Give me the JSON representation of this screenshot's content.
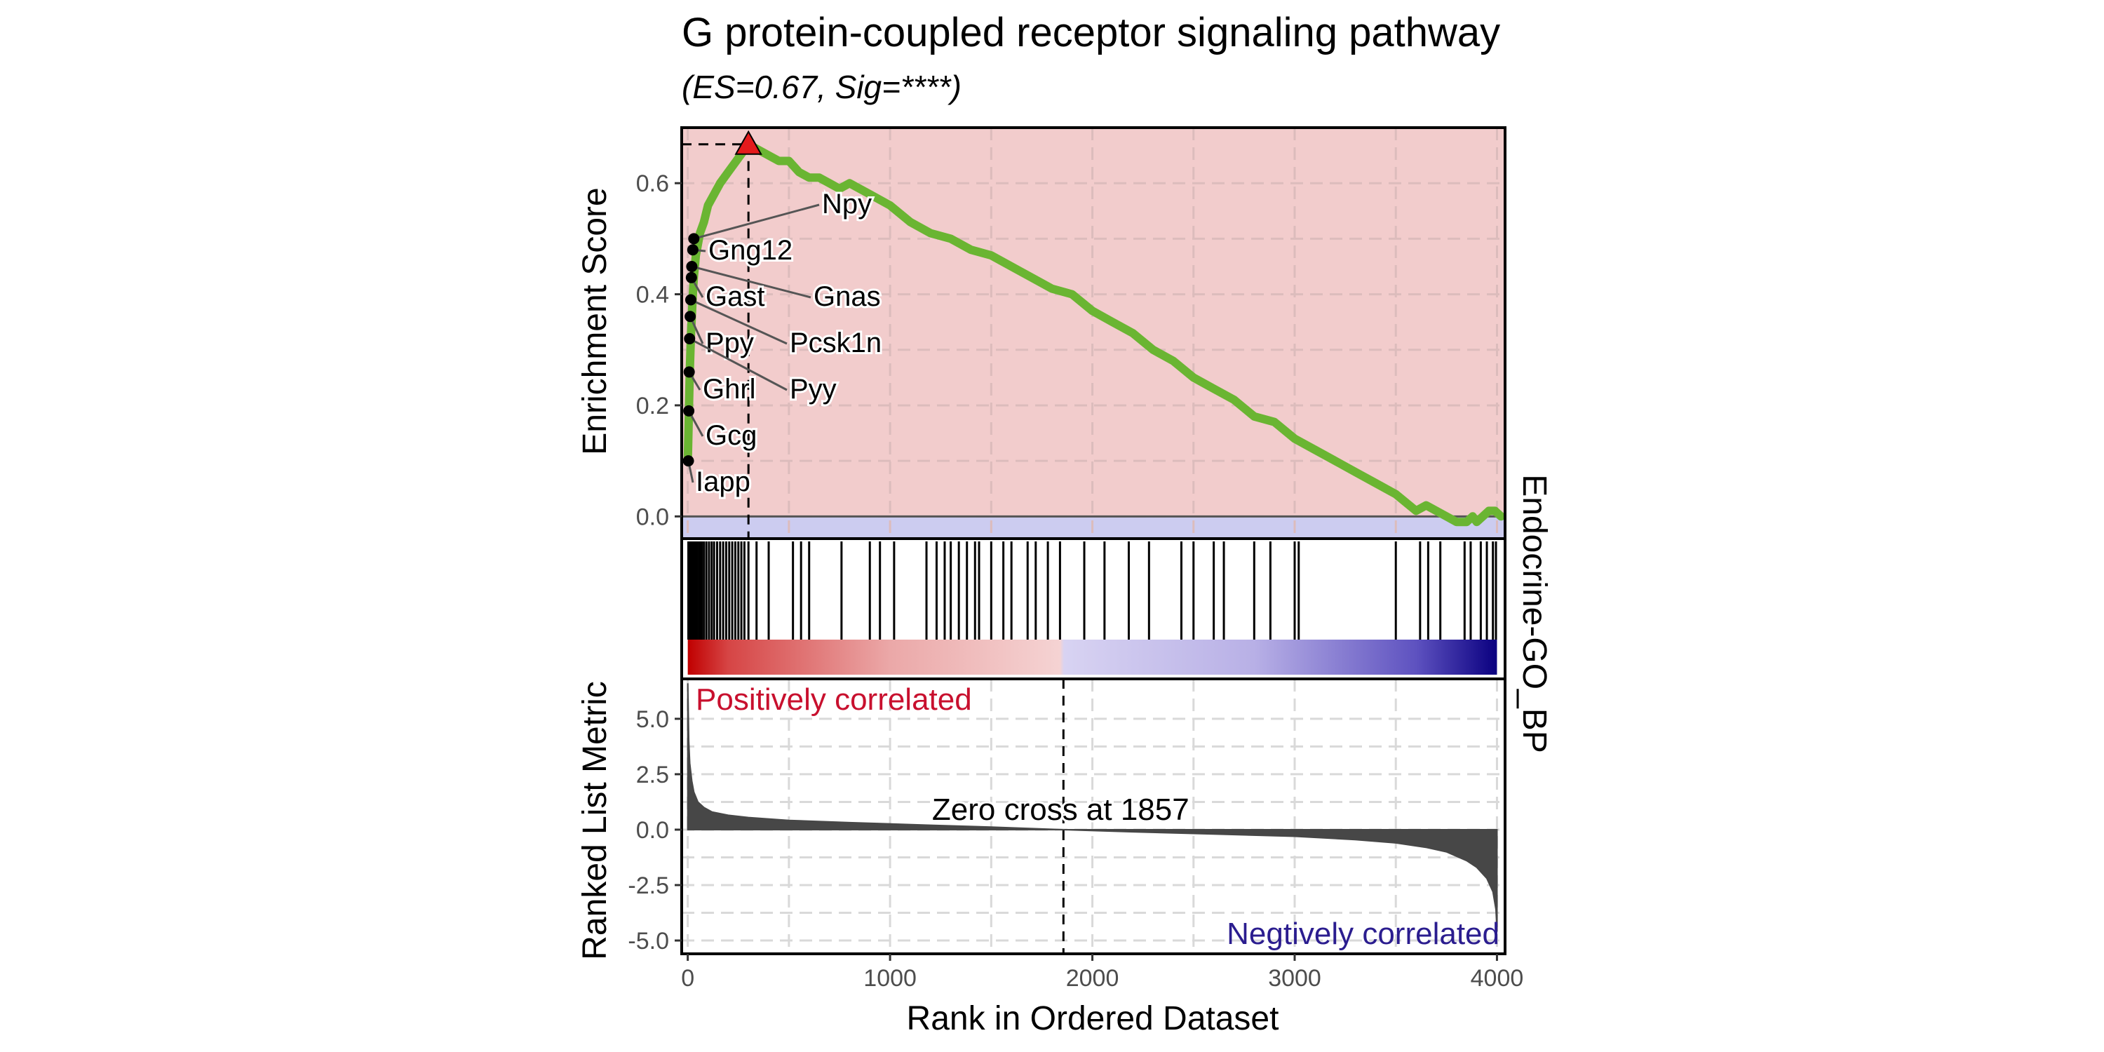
{
  "chart_data": {
    "type": "line",
    "title": "G protein-coupled receptor signaling pathway",
    "subtitle": "(ES=0.67, Sig=****)",
    "strip_label": "Endocrine-GO_BP",
    "xlabel": "Rank in Ordered Dataset",
    "xlim": [
      -30,
      4040
    ],
    "x_ticks": [
      0,
      1000,
      2000,
      3000,
      4000
    ],
    "x_tick_labels": [
      "0",
      "1000",
      "2000",
      "3000",
      "4000"
    ],
    "grid": true,
    "colors": {
      "running_score": "#6ab532",
      "positive_bg": "#f2cccc",
      "negative_bg": "#ccccf0",
      "peak_marker": "#e41a1c",
      "positive_text": "#c8102e",
      "negative_text": "#2b1d8f",
      "heat_red": "#c00000",
      "heat_blue": "#0a0080",
      "metric_fill": "#474747"
    },
    "enrichment": {
      "ylabel": "Enrichment Score",
      "ylim": [
        -0.04,
        0.7
      ],
      "y_ticks": [
        0.0,
        0.2,
        0.4,
        0.6
      ],
      "y_tick_labels": [
        "0.0",
        "0.2",
        "0.4",
        "0.6"
      ],
      "es": 0.67,
      "peak_rank": 300,
      "running_score": {
        "x": [
          0,
          5,
          10,
          15,
          20,
          25,
          30,
          40,
          50,
          60,
          80,
          100,
          130,
          160,
          200,
          240,
          280,
          300,
          350,
          400,
          450,
          500,
          550,
          600,
          650,
          700,
          750,
          800,
          850,
          900,
          1000,
          1100,
          1200,
          1300,
          1400,
          1500,
          1600,
          1700,
          1800,
          1900,
          2000,
          2100,
          2200,
          2300,
          2400,
          2500,
          2600,
          2700,
          2800,
          2900,
          3000,
          3100,
          3200,
          3300,
          3400,
          3500,
          3600,
          3650,
          3700,
          3750,
          3800,
          3850,
          3880,
          3900,
          3930,
          3960,
          3990,
          4020
        ],
        "y": [
          0.1,
          0.18,
          0.26,
          0.32,
          0.36,
          0.4,
          0.43,
          0.47,
          0.49,
          0.51,
          0.53,
          0.56,
          0.58,
          0.6,
          0.62,
          0.64,
          0.66,
          0.67,
          0.66,
          0.65,
          0.64,
          0.64,
          0.62,
          0.61,
          0.61,
          0.6,
          0.59,
          0.6,
          0.59,
          0.58,
          0.56,
          0.53,
          0.51,
          0.5,
          0.48,
          0.47,
          0.45,
          0.43,
          0.41,
          0.4,
          0.37,
          0.35,
          0.33,
          0.3,
          0.28,
          0.25,
          0.23,
          0.21,
          0.18,
          0.17,
          0.14,
          0.12,
          0.1,
          0.08,
          0.06,
          0.04,
          0.01,
          0.02,
          0.01,
          0.0,
          -0.01,
          -0.01,
          0.0,
          -0.01,
          0.0,
          0.01,
          0.01,
          0.0
        ]
      },
      "genes": [
        {
          "name": "Npy",
          "rank": 30,
          "es": 0.5
        },
        {
          "name": "Gng12",
          "rank": 25,
          "es": 0.48
        },
        {
          "name": "Gnas",
          "rank": 20,
          "es": 0.45
        },
        {
          "name": "Gast",
          "rank": 18,
          "es": 0.43
        },
        {
          "name": "Pcsk1n",
          "rank": 15,
          "es": 0.39
        },
        {
          "name": "Ppy",
          "rank": 12,
          "es": 0.36
        },
        {
          "name": "Pyy",
          "rank": 9,
          "es": 0.32
        },
        {
          "name": "Ghrl",
          "rank": 7,
          "es": 0.26
        },
        {
          "name": "Gcg",
          "rank": 5,
          "es": 0.19
        },
        {
          "name": "Iapp",
          "rank": 3,
          "es": 0.1
        }
      ]
    },
    "hits": {
      "ranks": [
        3,
        5,
        7,
        9,
        12,
        15,
        18,
        20,
        25,
        30,
        38,
        45,
        55,
        62,
        70,
        80,
        92,
        105,
        118,
        130,
        145,
        160,
        175,
        190,
        205,
        220,
        235,
        250,
        265,
        280,
        300,
        340,
        400,
        520,
        560,
        600,
        760,
        900,
        950,
        1020,
        1180,
        1230,
        1270,
        1300,
        1340,
        1380,
        1420,
        1440,
        1500,
        1560,
        1600,
        1680,
        1720,
        1780,
        1840,
        1960,
        2060,
        2180,
        2280,
        2440,
        2500,
        2600,
        2650,
        2800,
        2880,
        3000,
        3020,
        3500,
        3620,
        3660,
        3720,
        3840,
        3870,
        3920,
        3950,
        3980,
        3995
      ]
    },
    "ranked_metric": {
      "ylabel": "Ranked List Metric",
      "ylim": [
        -5.6,
        6.8
      ],
      "y_ticks": [
        -5.0,
        -2.5,
        0.0,
        2.5,
        5.0
      ],
      "y_tick_labels": [
        "-5.0",
        "-2.5",
        "0.0",
        "2.5",
        "5.0"
      ],
      "zero_cross": 1857,
      "zero_cross_label": "Zero cross at 1857",
      "positive_label": "Positively correlated",
      "negative_label": "Negtively correlated",
      "x": [
        0,
        5,
        10,
        20,
        30,
        50,
        80,
        120,
        200,
        300,
        500,
        800,
        1200,
        1500,
        1857,
        2200,
        2600,
        3000,
        3300,
        3500,
        3650,
        3750,
        3850,
        3900,
        3950,
        3980,
        3995,
        4000
      ],
      "y": [
        6.6,
        4.0,
        3.0,
        2.2,
        1.7,
        1.25,
        1.0,
        0.8,
        0.65,
        0.55,
        0.42,
        0.32,
        0.2,
        0.12,
        0.0,
        -0.1,
        -0.2,
        -0.3,
        -0.45,
        -0.6,
        -0.8,
        -1.0,
        -1.4,
        -1.7,
        -2.2,
        -2.8,
        -3.6,
        -4.6
      ]
    }
  }
}
